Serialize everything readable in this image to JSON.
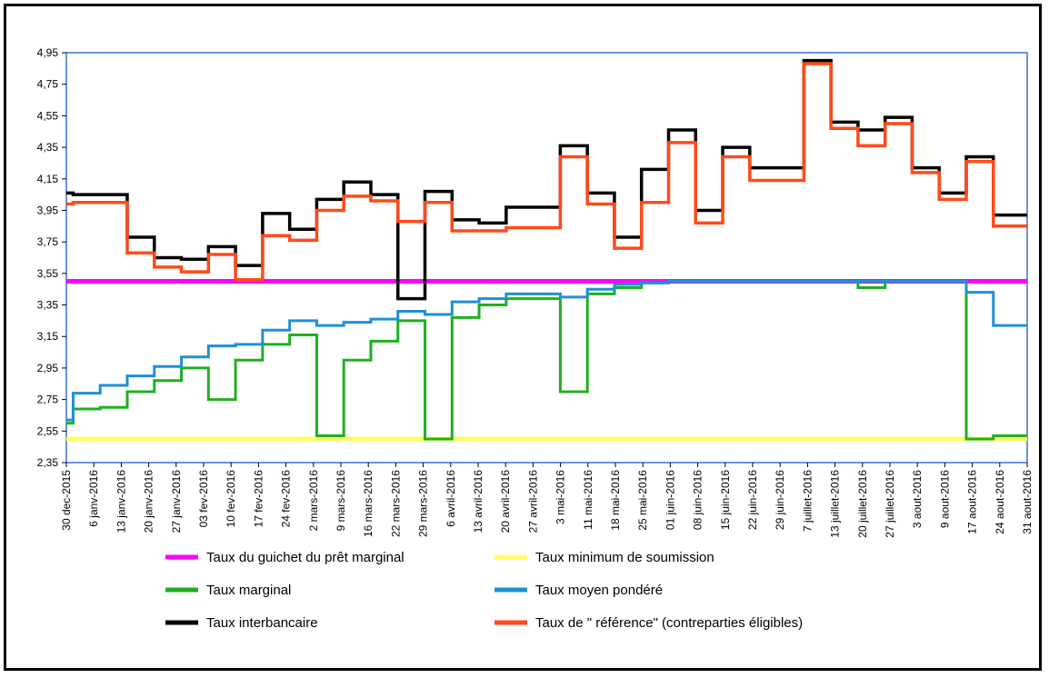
{
  "chart_data": {
    "type": "line",
    "title": "",
    "xlabel": "",
    "ylabel": "",
    "ylim": [
      2.35,
      4.95
    ],
    "y_ticks": [
      "4,95",
      "4,75",
      "4,55",
      "4,35",
      "4,15",
      "3,95",
      "3,75",
      "3,55",
      "3,35",
      "3,15",
      "2,95",
      "2,75",
      "2,55",
      "2,35"
    ],
    "x_ticks": [
      "30 dec-2015",
      "6 janv-2016",
      "13 janv-2016",
      "20 janv-2016",
      "27 janv-2016",
      "03 fev-2016",
      "10 fev-2016",
      "17 fev-2016",
      "24 fev-2016",
      "2 mars-2016",
      "9 mars-2016",
      "16 mars-2016",
      "22 mars-2016",
      "29 mars-2016",
      "6 avril-2016",
      "13 avril-2016",
      "20 avril-2016",
      "27 avril-2016",
      "3 mai-2016",
      "11 mai-2016",
      "18 mai-2016",
      "25 mai-2016",
      "01 juin-2016",
      "08 juin-2016",
      "15 juin-2016",
      "22 juin-2016",
      "29 juin-2016",
      "7 juillet-2016",
      "13 juillet-2016",
      "20 juillet-2016",
      "27 juillet-2016",
      "3 aout-2016",
      "9 aout-2016",
      "17 aout-2016",
      "24 aout-2016",
      "31 aout-2016"
    ],
    "grid": false,
    "legend_position": "bottom",
    "series": [
      {
        "name": "Taux du guichet du prêt marginal",
        "color": "#ff00ff",
        "values": [
          3.5,
          3.5,
          3.5,
          3.5,
          3.5,
          3.5,
          3.5,
          3.5,
          3.5,
          3.5,
          3.5,
          3.5,
          3.5,
          3.5,
          3.5,
          3.5,
          3.5,
          3.5,
          3.5,
          3.5,
          3.5,
          3.5,
          3.5,
          3.5,
          3.5,
          3.5,
          3.5,
          3.5,
          3.5,
          3.5,
          3.5,
          3.5,
          3.5,
          3.5,
          3.5,
          3.5,
          3.5,
          3.5,
          3.5,
          3.5,
          3.5,
          3.5,
          3.5,
          3.5,
          3.5,
          3.5,
          3.5,
          3.5,
          3.5,
          3.5,
          3.5,
          3.5,
          3.5,
          3.5,
          3.5,
          3.5,
          3.5,
          3.5,
          3.5,
          3.5,
          3.5,
          3.5,
          3.5,
          3.5,
          3.5,
          3.5,
          3.5,
          3.5,
          3.5,
          3.5,
          3.5,
          3.5
        ]
      },
      {
        "name": "Taux minimum de soumission",
        "color": "#ffff66",
        "values": [
          2.5,
          2.5,
          2.5,
          2.5,
          2.5,
          2.5,
          2.5,
          2.5,
          2.5,
          2.5,
          2.5,
          2.5,
          2.5,
          2.5,
          2.5,
          2.5,
          2.5,
          2.5,
          2.5,
          2.5,
          2.5,
          2.5,
          2.5,
          2.5,
          2.5,
          2.5,
          2.5,
          2.5,
          2.5,
          2.5,
          2.5,
          2.5,
          2.5,
          2.5,
          2.5,
          2.5,
          2.5,
          2.5,
          2.5,
          2.5,
          2.5,
          2.5,
          2.5,
          2.5,
          2.5,
          2.5,
          2.5,
          2.5,
          2.5,
          2.5,
          2.5,
          2.5,
          2.5,
          2.5,
          2.5,
          2.5,
          2.5,
          2.5,
          2.5,
          2.5,
          2.5,
          2.5,
          2.5,
          2.5,
          2.5,
          2.5,
          2.5,
          2.5,
          2.5,
          2.5,
          2.5,
          2.5
        ]
      },
      {
        "name": "Taux marginal",
        "color": "#1fb01f",
        "values": [
          2.6,
          2.69,
          2.69,
          2.7,
          2.7,
          2.8,
          2.8,
          2.87,
          2.87,
          2.95,
          2.95,
          2.75,
          2.75,
          3.0,
          3.0,
          3.1,
          3.1,
          3.16,
          3.16,
          2.52,
          2.52,
          3.0,
          3.0,
          3.12,
          3.12,
          3.25,
          3.25,
          2.5,
          2.5,
          3.27,
          3.27,
          3.35,
          3.35,
          3.39,
          3.39,
          3.39,
          3.39,
          2.8,
          2.8,
          3.42,
          3.42,
          3.46,
          3.46,
          3.49,
          3.49,
          3.5,
          3.5,
          3.5,
          3.5,
          3.5,
          3.5,
          3.5,
          3.5,
          3.5,
          3.5,
          3.5,
          3.5,
          3.5,
          3.5,
          3.46,
          3.46,
          3.5,
          3.5,
          3.5,
          3.5,
          3.5,
          3.5,
          2.5,
          2.5,
          2.52,
          2.52,
          2.52
        ]
      },
      {
        "name": "Taux moyen pondéré",
        "color": "#1e90d6",
        "values": [
          2.62,
          2.79,
          2.79,
          2.84,
          2.84,
          2.9,
          2.9,
          2.96,
          2.96,
          3.02,
          3.02,
          3.09,
          3.09,
          3.1,
          3.1,
          3.19,
          3.19,
          3.25,
          3.25,
          3.22,
          3.22,
          3.24,
          3.24,
          3.26,
          3.26,
          3.31,
          3.31,
          3.29,
          3.29,
          3.37,
          3.37,
          3.39,
          3.39,
          3.42,
          3.42,
          3.42,
          3.42,
          3.4,
          3.4,
          3.45,
          3.45,
          3.48,
          3.48,
          3.49,
          3.49,
          3.5,
          3.5,
          3.5,
          3.5,
          3.5,
          3.5,
          3.5,
          3.5,
          3.5,
          3.5,
          3.5,
          3.5,
          3.5,
          3.5,
          3.5,
          3.5,
          3.5,
          3.5,
          3.5,
          3.5,
          3.5,
          3.5,
          3.43,
          3.43,
          3.22,
          3.22,
          3.22
        ]
      },
      {
        "name": "Taux interbancaire",
        "color": "#000000",
        "values": [
          4.06,
          4.05,
          4.05,
          4.05,
          4.05,
          3.78,
          3.78,
          3.65,
          3.65,
          3.64,
          3.64,
          3.72,
          3.72,
          3.6,
          3.6,
          3.93,
          3.93,
          3.83,
          3.83,
          4.02,
          4.02,
          4.13,
          4.13,
          4.05,
          4.05,
          3.39,
          3.39,
          4.07,
          4.07,
          3.89,
          3.89,
          3.87,
          3.87,
          3.97,
          3.97,
          3.97,
          3.97,
          4.36,
          4.36,
          4.06,
          4.06,
          3.78,
          3.78,
          4.21,
          4.21,
          4.46,
          4.46,
          3.95,
          3.95,
          4.35,
          4.35,
          4.22,
          4.22,
          4.22,
          4.22,
          4.9,
          4.9,
          4.51,
          4.51,
          4.46,
          4.46,
          4.54,
          4.54,
          4.22,
          4.22,
          4.06,
          4.06,
          4.29,
          4.29,
          3.92,
          3.92,
          3.92
        ]
      },
      {
        "name": "Taux de  \" référence\" (contreparties éligibles)",
        "color": "#ff4a1a",
        "values": [
          3.99,
          4.0,
          4.0,
          4.0,
          4.0,
          3.68,
          3.68,
          3.59,
          3.59,
          3.56,
          3.56,
          3.67,
          3.67,
          3.51,
          3.51,
          3.79,
          3.79,
          3.76,
          3.76,
          3.95,
          3.95,
          4.04,
          4.04,
          4.01,
          4.01,
          3.88,
          3.88,
          4.0,
          4.0,
          3.82,
          3.82,
          3.82,
          3.82,
          3.84,
          3.84,
          3.84,
          3.84,
          4.29,
          4.29,
          3.99,
          3.99,
          3.71,
          3.71,
          4.0,
          4.0,
          4.38,
          4.38,
          3.87,
          3.87,
          4.29,
          4.29,
          4.14,
          4.14,
          4.14,
          4.14,
          4.88,
          4.88,
          4.47,
          4.47,
          4.36,
          4.36,
          4.5,
          4.5,
          4.19,
          4.19,
          4.02,
          4.02,
          4.26,
          4.26,
          3.85,
          3.85,
          3.85
        ]
      }
    ]
  }
}
